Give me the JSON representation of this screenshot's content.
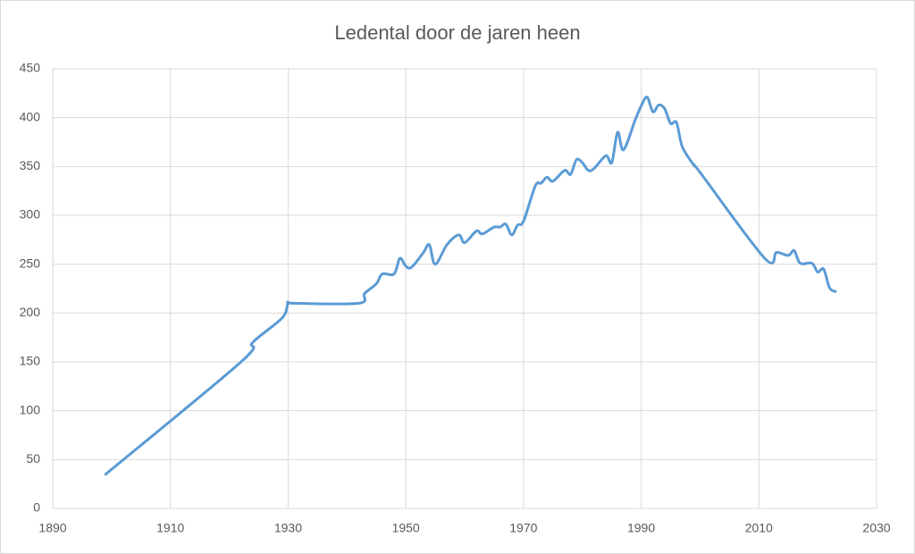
{
  "chart_data": {
    "type": "line",
    "title": "Ledental door de jaren heen",
    "x": [
      1899,
      1922,
      1924,
      1929,
      1930,
      1931,
      1942,
      1943,
      1945,
      1946,
      1948,
      1949,
      1950,
      1951,
      1953,
      1954,
      1955,
      1957,
      1959,
      1960,
      1962,
      1963,
      1965,
      1966,
      1967,
      1968,
      1969,
      1970,
      1972,
      1973,
      1974,
      1975,
      1977,
      1978,
      1979,
      1980,
      1981,
      1982,
      1984,
      1985,
      1986,
      1987,
      1989,
      1990,
      1991,
      1992,
      1993,
      1994,
      1995,
      1996,
      1997,
      1999,
      2000,
      2011,
      2013,
      2015,
      2016,
      2017,
      2019,
      2020,
      2021,
      2022,
      2023
    ],
    "values": [
      35,
      150,
      170,
      195,
      210,
      210,
      210,
      220,
      230,
      240,
      240,
      256,
      248,
      247,
      262,
      270,
      250,
      270,
      280,
      272,
      284,
      281,
      288,
      288,
      291,
      280,
      290,
      294,
      330,
      333,
      339,
      335,
      346,
      342,
      357,
      354,
      346,
      348,
      361,
      354,
      385,
      367,
      398,
      412,
      421,
      406,
      413,
      409,
      394,
      395,
      370,
      351,
      344,
      256,
      262,
      259,
      264,
      251,
      251,
      242,
      245,
      226,
      222
    ],
    "color": "#5b9bd5",
    "xlim": [
      1890,
      2030
    ],
    "xticks": [
      1890,
      1910,
      1930,
      1950,
      1970,
      1990,
      2010,
      2030
    ],
    "ylim": [
      0,
      450
    ],
    "yticks": [
      0,
      50,
      100,
      150,
      200,
      250,
      300,
      350,
      400,
      450
    ],
    "grid": true
  }
}
